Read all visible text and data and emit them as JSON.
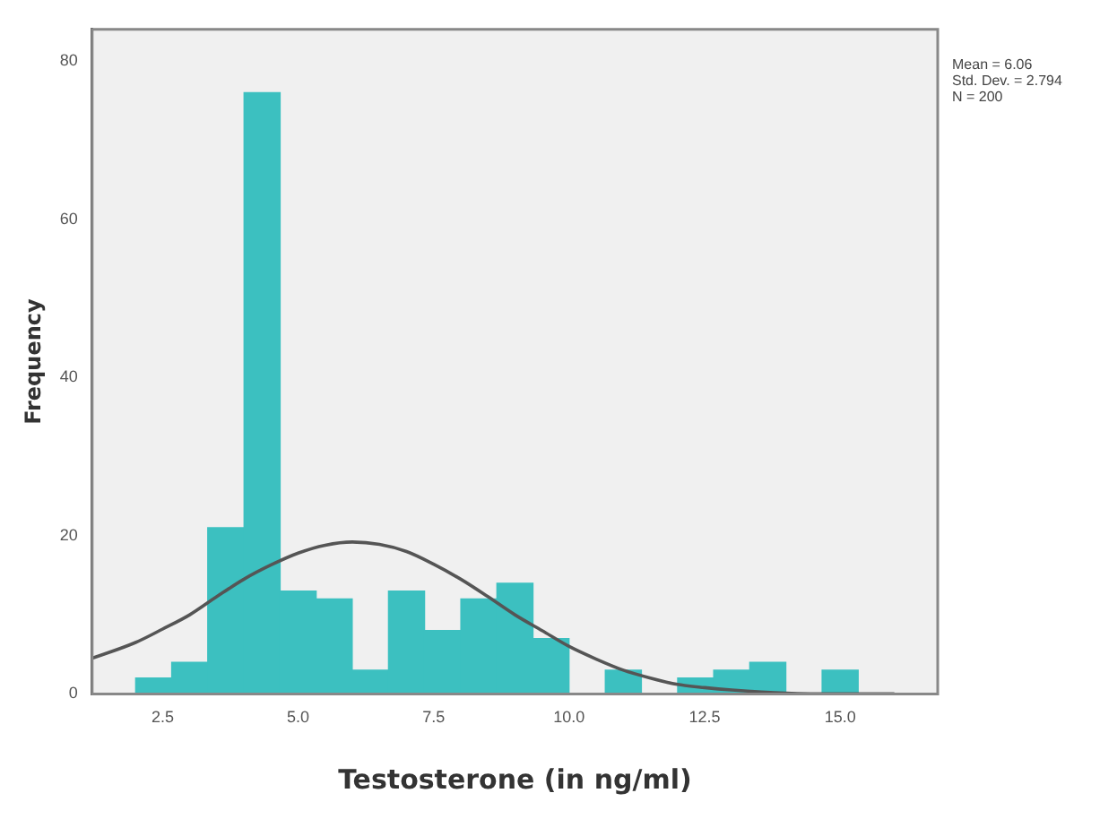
{
  "chart_data": {
    "type": "histogram",
    "xlabel": "Testosterone (in ng/ml)",
    "ylabel": "Frequency",
    "bins": [
      2.0,
      2.67,
      3.33,
      4.0,
      4.67,
      5.33,
      6.0,
      6.67,
      7.33,
      8.0,
      8.67,
      9.33,
      10.0,
      10.67,
      11.33,
      12.0,
      12.67,
      13.33,
      14.0,
      14.67,
      15.33
    ],
    "values": [
      2,
      4,
      21,
      76,
      13,
      12,
      3,
      13,
      8,
      12,
      14,
      7,
      0,
      3,
      0,
      2,
      3,
      4,
      0,
      3
    ],
    "color": "#3cc0c0",
    "series": [
      {
        "type": "line",
        "color": "#555555",
        "x": [
          1.2,
          2.0,
          2.5,
          3.0,
          3.5,
          4.0,
          4.5,
          5.0,
          5.5,
          6.0,
          6.5,
          7.0,
          7.5,
          8.0,
          8.5,
          9.0,
          9.5,
          10.0,
          10.5,
          11.0,
          11.5,
          12.0,
          12.5,
          13.0,
          14.0,
          15.0,
          16.0
        ],
        "values": [
          4.5,
          6.5,
          8.2,
          10,
          12.3,
          14.5,
          16.3,
          17.8,
          18.8,
          19.2,
          18.9,
          18,
          16.4,
          14.5,
          12.3,
          10,
          8,
          6,
          4.4,
          3,
          2,
          1.2,
          0.8,
          0.5,
          0.1,
          0,
          0
        ]
      }
    ],
    "xlim": [
      1.2,
      16.8
    ],
    "ylim": [
      0,
      84
    ],
    "xticks": [
      2.5,
      {
        "value": 5,
        "label": "5.0"
      },
      7.5,
      {
        "value": 10,
        "label": "10.0"
      },
      12.5,
      {
        "value": 15,
        "label": "15.0"
      }
    ],
    "yticks": [
      0,
      20,
      40,
      60,
      80
    ],
    "grid": false,
    "legend": false,
    "annotations": [
      "Mean = 6.06",
      "Std. Dev. = 2.794",
      "N = 200"
    ]
  }
}
